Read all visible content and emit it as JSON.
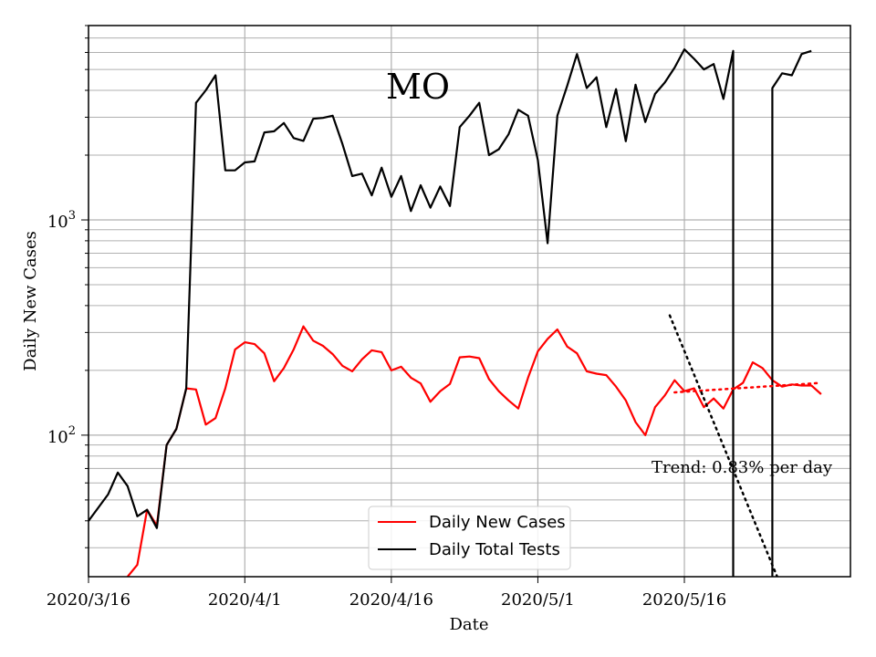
{
  "chart_data": {
    "type": "line",
    "title": "MO",
    "xlabel": "Date",
    "ylabel": "Daily New Cases",
    "yscale": "log",
    "ylim": [
      22,
      8000
    ],
    "xlim_days": [
      0,
      78
    ],
    "x_ticks": [
      {
        "day": 0,
        "label": "2020/3/16"
      },
      {
        "day": 16,
        "label": "2020/4/1"
      },
      {
        "day": 31,
        "label": "2020/4/16"
      },
      {
        "day": 46,
        "label": "2020/5/1"
      },
      {
        "day": 61,
        "label": "2020/5/16"
      }
    ],
    "y_ticks": [
      {
        "value": 100,
        "base": "10",
        "exp": "2"
      },
      {
        "value": 1000,
        "base": "10",
        "exp": "3"
      }
    ],
    "grid": true,
    "legend_position": "lower-center",
    "annotation": "Trend: 0.83% per day",
    "series": [
      {
        "name": "Daily New Cases",
        "color": "#ff0000",
        "style": "solid",
        "points": [
          [
            4,
            22
          ],
          [
            5,
            25
          ],
          [
            6,
            45
          ],
          [
            7,
            38
          ],
          [
            8,
            90
          ],
          [
            9,
            107
          ],
          [
            10,
            165
          ],
          [
            11,
            163
          ],
          [
            12,
            112
          ],
          [
            13,
            120
          ],
          [
            14,
            165
          ],
          [
            15,
            250
          ],
          [
            16,
            270
          ],
          [
            17,
            265
          ],
          [
            18,
            240
          ],
          [
            19,
            178
          ],
          [
            20,
            205
          ],
          [
            21,
            250
          ],
          [
            22,
            320
          ],
          [
            23,
            275
          ],
          [
            24,
            260
          ],
          [
            25,
            238
          ],
          [
            26,
            210
          ],
          [
            27,
            198
          ],
          [
            28,
            225
          ],
          [
            29,
            248
          ],
          [
            30,
            243
          ],
          [
            31,
            200
          ],
          [
            32,
            208
          ],
          [
            33,
            185
          ],
          [
            34,
            174
          ],
          [
            35,
            143
          ],
          [
            36,
            160
          ],
          [
            37,
            173
          ],
          [
            38,
            230
          ],
          [
            39,
            232
          ],
          [
            40,
            228
          ],
          [
            41,
            182
          ],
          [
            42,
            160
          ],
          [
            43,
            145
          ],
          [
            44,
            133
          ],
          [
            45,
            185
          ],
          [
            46,
            245
          ],
          [
            47,
            280
          ],
          [
            48,
            310
          ],
          [
            49,
            258
          ],
          [
            50,
            240
          ],
          [
            51,
            198
          ],
          [
            52,
            193
          ],
          [
            53,
            190
          ],
          [
            54,
            168
          ],
          [
            55,
            145
          ],
          [
            56,
            115
          ],
          [
            57,
            100
          ],
          [
            58,
            135
          ],
          [
            59,
            153
          ],
          [
            60,
            180
          ],
          [
            61,
            160
          ],
          [
            62,
            165
          ],
          [
            63,
            135
          ],
          [
            64,
            148
          ],
          [
            65,
            133
          ],
          [
            66,
            163
          ],
          [
            67,
            175
          ],
          [
            68,
            218
          ],
          [
            69,
            205
          ],
          [
            70,
            180
          ],
          [
            71,
            168
          ],
          [
            72,
            172
          ],
          [
            73,
            170
          ],
          [
            74,
            170
          ],
          [
            75,
            155
          ]
        ]
      },
      {
        "name": "Daily Total Tests",
        "color": "#000000",
        "style": "solid",
        "segments": [
          [
            [
              0,
              40
            ],
            [
              1,
              46
            ],
            [
              2,
              53
            ],
            [
              3,
              67
            ],
            [
              4,
              58
            ],
            [
              5,
              42
            ],
            [
              6,
              45
            ],
            [
              7,
              37
            ],
            [
              8,
              90
            ],
            [
              9,
              107
            ],
            [
              10,
              165
            ],
            [
              11,
              3500
            ],
            [
              12,
              4000
            ],
            [
              13,
              4700
            ],
            [
              14,
              1700
            ],
            [
              15,
              1700
            ],
            [
              16,
              1850
            ],
            [
              17,
              1870
            ],
            [
              18,
              2550
            ],
            [
              19,
              2580
            ],
            [
              20,
              2820
            ],
            [
              21,
              2400
            ],
            [
              22,
              2330
            ],
            [
              23,
              2950
            ],
            [
              24,
              2980
            ],
            [
              25,
              3050
            ],
            [
              26,
              2250
            ],
            [
              27,
              1600
            ],
            [
              28,
              1640
            ],
            [
              29,
              1300
            ],
            [
              30,
              1750
            ],
            [
              31,
              1280
            ],
            [
              32,
              1600
            ],
            [
              33,
              1100
            ],
            [
              34,
              1450
            ],
            [
              35,
              1140
            ],
            [
              36,
              1430
            ],
            [
              37,
              1160
            ],
            [
              38,
              2700
            ],
            [
              39,
              3050
            ],
            [
              40,
              3500
            ],
            [
              41,
              2000
            ],
            [
              42,
              2130
            ],
            [
              43,
              2500
            ],
            [
              44,
              3250
            ],
            [
              45,
              3050
            ],
            [
              46,
              1900
            ],
            [
              47,
              780
            ],
            [
              48,
              3050
            ],
            [
              49,
              4200
            ],
            [
              50,
              5900
            ],
            [
              51,
              4100
            ],
            [
              52,
              4600
            ],
            [
              53,
              2700
            ],
            [
              54,
              4050
            ],
            [
              55,
              2320
            ],
            [
              56,
              4250
            ],
            [
              57,
              2850
            ],
            [
              58,
              3850
            ],
            [
              59,
              4350
            ],
            [
              60,
              5100
            ],
            [
              61,
              6200
            ],
            [
              62,
              5600
            ],
            [
              63,
              5000
            ],
            [
              64,
              5300
            ],
            [
              65,
              3650
            ],
            [
              66,
              6100
            ],
            [
              66,
              22
            ]
          ],
          [
            [
              70,
              22
            ],
            [
              70,
              4100
            ],
            [
              71,
              4800
            ],
            [
              72,
              4700
            ],
            [
              73,
              5900
            ],
            [
              74,
              6100
            ]
          ]
        ]
      },
      {
        "name": "trend-red",
        "color": "#ff0000",
        "style": "dotted",
        "points": [
          [
            60,
            158
          ],
          [
            75,
            175
          ]
        ]
      },
      {
        "name": "trend-black",
        "color": "#000000",
        "style": "dotted",
        "points": [
          [
            59.5,
            360
          ],
          [
            70.5,
            22
          ]
        ]
      }
    ]
  }
}
